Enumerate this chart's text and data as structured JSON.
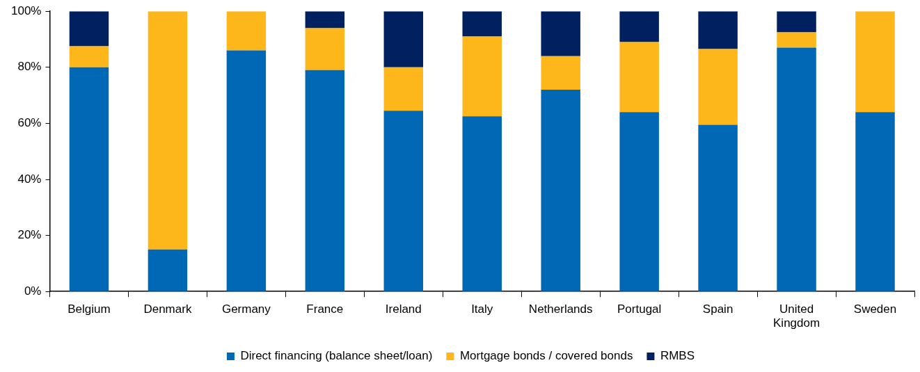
{
  "chart_data": {
    "type": "bar",
    "stacked": true,
    "categories": [
      "Belgium",
      "Denmark",
      "Germany",
      "France",
      "Ireland",
      "Italy",
      "Netherlands",
      "Portugal",
      "Spain",
      "United Kingdom",
      "Sweden"
    ],
    "series": [
      {
        "name": "Direct financing (balance sheet/loan)",
        "color": "#0068b4",
        "values": [
          80,
          15,
          86,
          79,
          64.5,
          62.5,
          72,
          64,
          59.5,
          87,
          64
        ]
      },
      {
        "name": "Mortgage bonds / covered bonds",
        "color": "#fdb71a",
        "values": [
          7.5,
          85,
          14,
          15,
          15.5,
          28.5,
          12,
          25,
          27,
          5.5,
          36
        ]
      },
      {
        "name": "RMBS",
        "color": "#002060",
        "values": [
          12.5,
          0,
          null,
          6,
          20,
          9,
          16,
          11,
          13.5,
          7.5,
          0
        ]
      }
    ],
    "ylim": [
      0,
      100
    ],
    "yticks": [
      {
        "value": 0,
        "label": "0%"
      },
      {
        "value": 20,
        "label": "20%"
      },
      {
        "value": 40,
        "label": "40%"
      },
      {
        "value": 60,
        "label": "60%"
      },
      {
        "value": 80,
        "label": "80%"
      },
      {
        "value": 100,
        "label": "100%"
      }
    ],
    "grid": false,
    "legend": "bottom"
  }
}
